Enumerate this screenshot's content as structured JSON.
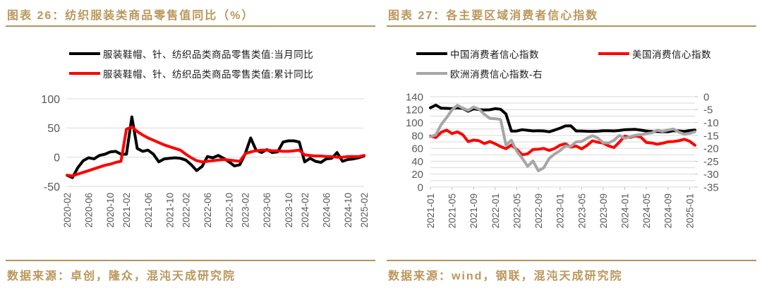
{
  "accent": {
    "gold": "#B5945A",
    "grid": "#D9D9D9",
    "axis_text": "#595959"
  },
  "figure_26": {
    "title": "图表 26：纺织服装类商品零售值同比（%）",
    "source": "数据来源：卓创，隆众，混沌天成研究院"
  },
  "figure_27": {
    "title": "图表 27：各主要区域消费者信心指数",
    "source": "数据来源：wind，钢联，混沌天成研究院"
  },
  "chart_data": [
    {
      "type": "line",
      "title": "纺织服装类商品零售值同比（%）",
      "xlabel": "",
      "ylabel": "",
      "ylim": [
        -50,
        100
      ],
      "yticks": [
        100,
        50,
        0,
        -50
      ],
      "grid": true,
      "legend_position": "top",
      "x": [
        "2020-02",
        "2020-03",
        "2020-04",
        "2020-05",
        "2020-06",
        "2020-07",
        "2020-08",
        "2020-09",
        "2020-10",
        "2020-11",
        "2020-12",
        "2021-02",
        "2021-03",
        "2021-04",
        "2021-05",
        "2021-06",
        "2021-07",
        "2021-08",
        "2021-09",
        "2021-10",
        "2021-11",
        "2021-12",
        "2022-02",
        "2022-03",
        "2022-04",
        "2022-05",
        "2022-06",
        "2022-07",
        "2022-08",
        "2022-09",
        "2022-10",
        "2022-11",
        "2022-12",
        "2023-02",
        "2023-03",
        "2023-04",
        "2023-05",
        "2023-06",
        "2023-07",
        "2023-08",
        "2023-09",
        "2023-10",
        "2023-11",
        "2023-12",
        "2024-02",
        "2024-03",
        "2024-04",
        "2024-05",
        "2024-06",
        "2024-07",
        "2024-08",
        "2024-09",
        "2024-10",
        "2024-11",
        "2024-12",
        "2025-02"
      ],
      "tick_labels": [
        "2020-02",
        "2020-06",
        "2020-10",
        "2021-02",
        "2021-06",
        "2021-10",
        "2022-02",
        "2022-06",
        "2022-10",
        "2023-02",
        "2023-06",
        "2023-10",
        "2024-02",
        "2024-06",
        "2024-10",
        "2025-02"
      ],
      "series": [
        {
          "name": "服装鞋帽、针、纺织品类商品零售类值:当月同比",
          "color": "#000000",
          "values": [
            -31,
            -35,
            -18,
            -6,
            -1,
            -3,
            3,
            5,
            9,
            10,
            5,
            5,
            69,
            15,
            10,
            12,
            5,
            -8,
            -3,
            -2,
            -1,
            -2,
            -5,
            -13,
            -23,
            -16,
            1,
            -1,
            3,
            -2,
            -8,
            -15,
            -13,
            6,
            33,
            12,
            8,
            13,
            8,
            9,
            26,
            28,
            28,
            26,
            -8,
            -2,
            -7,
            -9,
            -3,
            -2,
            8,
            -7,
            -4,
            -3,
            -1,
            2
          ]
        },
        {
          "name": "服装鞋帽、针、纺织品类商品零售类值:累计同比",
          "color": "#FF0000",
          "values": [
            -31,
            -32,
            -29,
            -26,
            -23,
            -20,
            -17,
            -14,
            -12,
            -9,
            -7,
            48,
            52,
            44,
            38,
            33,
            29,
            25,
            21,
            18,
            15,
            12,
            5,
            -1,
            -6,
            -8,
            -7,
            -6,
            -5,
            -4,
            -5,
            -6,
            -7,
            6,
            9,
            11,
            12,
            12,
            11,
            11,
            10,
            10,
            11,
            12,
            4,
            3,
            2,
            2,
            1,
            1,
            0,
            0,
            1,
            1,
            1,
            3
          ]
        }
      ]
    },
    {
      "type": "line",
      "title": "各主要区域消费者信心指数",
      "xlabel": "",
      "ylabel": "",
      "ylim_left": [
        0,
        140
      ],
      "yticks_left": [
        140,
        120,
        100,
        80,
        60,
        40,
        20,
        0
      ],
      "ylim_right": [
        -35,
        0
      ],
      "yticks_right": [
        0,
        -5,
        -10,
        -15,
        -20,
        -25,
        -30,
        -35
      ],
      "grid_step": 10,
      "grid": true,
      "legend_position": "top",
      "x": [
        "2021-01",
        "2021-02",
        "2021-03",
        "2021-04",
        "2021-05",
        "2021-06",
        "2021-07",
        "2021-08",
        "2021-09",
        "2021-10",
        "2021-11",
        "2021-12",
        "2022-01",
        "2022-02",
        "2022-03",
        "2022-04",
        "2022-05",
        "2022-06",
        "2022-07",
        "2022-08",
        "2022-09",
        "2022-10",
        "2022-11",
        "2022-12",
        "2023-01",
        "2023-02",
        "2023-03",
        "2023-04",
        "2023-05",
        "2023-06",
        "2023-07",
        "2023-08",
        "2023-09",
        "2023-10",
        "2023-11",
        "2023-12",
        "2024-01",
        "2024-02",
        "2024-03",
        "2024-04",
        "2024-05",
        "2024-06",
        "2024-07",
        "2024-08",
        "2024-09",
        "2024-10",
        "2024-11",
        "2024-12",
        "2025-01",
        "2025-02"
      ],
      "tick_labels": [
        "2021-01",
        "2021-05",
        "2021-09",
        "2022-01",
        "2022-05",
        "2022-09",
        "2023-01",
        "2023-05",
        "2023-09",
        "2024-01",
        "2024-05",
        "2024-09",
        "2025-01"
      ],
      "series": [
        {
          "name": "中国消费者信心指数",
          "color": "#000000",
          "axis": "left",
          "values": [
            122.8,
            127.0,
            122.2,
            121.9,
            121.5,
            122.8,
            121.8,
            117.5,
            121.2,
            120.2,
            119.5,
            119.8,
            121.5,
            120.5,
            113.2,
            86.7,
            86.8,
            88.9,
            87.9,
            87.0,
            87.2,
            86.9,
            85.6,
            88.3,
            91.2,
            94.7,
            94.9,
            87.0,
            86.8,
            86.4,
            86.3,
            86.5,
            87.2,
            87.3,
            87.0,
            87.6,
            88.9,
            89.1,
            89.4,
            88.2,
            86.8,
            86.2,
            86.0,
            85.8,
            85.7,
            87.3,
            86.9,
            86.2,
            87.5,
            88.4
          ]
        },
        {
          "name": "美国消费信心指数",
          "color": "#FF0000",
          "axis": "left",
          "values": [
            79.0,
            76.8,
            84.9,
            88.3,
            82.9,
            85.5,
            81.2,
            70.3,
            72.8,
            71.7,
            67.4,
            70.6,
            67.2,
            62.8,
            59.4,
            65.2,
            58.4,
            50.0,
            51.5,
            58.2,
            58.6,
            59.9,
            56.8,
            59.7,
            64.9,
            67.0,
            62.0,
            63.5,
            59.2,
            64.4,
            71.6,
            69.5,
            68.1,
            63.8,
            61.3,
            69.7,
            79.0,
            76.9,
            79.4,
            77.2,
            69.1,
            68.2,
            66.4,
            67.9,
            70.1,
            70.5,
            71.8,
            74.0,
            71.1,
            64.7
          ]
        },
        {
          "name": "欧洲消费信心指数-右",
          "color": "#A6A6A6",
          "axis": "right",
          "values": [
            -15.5,
            -14.8,
            -10.8,
            -8.1,
            -5.1,
            -3.3,
            -4.4,
            -5.3,
            -4.0,
            -4.8,
            -6.8,
            -8.4,
            -8.5,
            -8.8,
            -18.7,
            -16.9,
            -21.1,
            -23.8,
            -27.0,
            -24.9,
            -28.7,
            -27.5,
            -23.9,
            -22.2,
            -20.9,
            -19.1,
            -19.2,
            -17.5,
            -17.4,
            -16.1,
            -15.1,
            -16.0,
            -17.8,
            -17.9,
            -16.9,
            -15.0,
            -16.1,
            -15.5,
            -14.9,
            -14.7,
            -14.3,
            -14.0,
            -13.0,
            -13.4,
            -12.9,
            -12.5,
            -13.7,
            -14.5,
            -14.2,
            -13.6
          ]
        }
      ]
    }
  ]
}
